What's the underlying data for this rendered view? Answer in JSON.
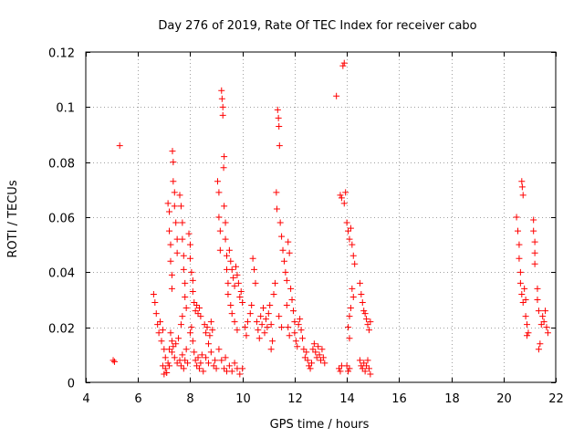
{
  "chart_data": {
    "type": "scatter",
    "title": "Day 276 of 2019, Rate Of TEC Index for receiver cabo",
    "xlabel": "GPS time / hours",
    "ylabel": "ROTI / TECUs",
    "xlim": [
      4,
      22
    ],
    "ylim": [
      0,
      0.12
    ],
    "xticks": [
      4,
      6,
      8,
      10,
      12,
      14,
      16,
      18,
      20,
      22
    ],
    "xtick_labels": [
      "4",
      "6",
      "8",
      "10",
      "12",
      "14",
      "16",
      "18",
      "20",
      "22"
    ],
    "yticks": [
      0,
      0.02,
      0.04,
      0.06,
      0.08,
      0.1,
      0.12
    ],
    "ytick_labels": [
      "0",
      "0.02",
      "0.04",
      "0.06",
      "0.08",
      "0.1",
      "0.12"
    ],
    "grid": true,
    "marker": "plus",
    "marker_color": "#ff0000",
    "series": [
      {
        "name": "ROTI",
        "points": [
          [
            5.05,
            0.008
          ],
          [
            5.1,
            0.0075
          ],
          [
            5.3,
            0.086
          ],
          [
            6.6,
            0.032
          ],
          [
            6.65,
            0.029
          ],
          [
            6.7,
            0.025
          ],
          [
            6.75,
            0.021
          ],
          [
            6.8,
            0.018
          ],
          [
            6.85,
            0.022
          ],
          [
            6.9,
            0.015
          ],
          [
            6.95,
            0.019
          ],
          [
            7.0,
            0.012
          ],
          [
            7.05,
            0.009
          ],
          [
            6.95,
            0.006
          ],
          [
            7.0,
            0.003
          ],
          [
            7.05,
            0.005
          ],
          [
            7.1,
            0.0035
          ],
          [
            7.15,
            0.065
          ],
          [
            7.2,
            0.062
          ],
          [
            7.2,
            0.055
          ],
          [
            7.25,
            0.05
          ],
          [
            7.25,
            0.044
          ],
          [
            7.3,
            0.039
          ],
          [
            7.3,
            0.034
          ],
          [
            7.32,
            0.084
          ],
          [
            7.35,
            0.08
          ],
          [
            7.35,
            0.073
          ],
          [
            7.4,
            0.069
          ],
          [
            7.4,
            0.064
          ],
          [
            7.45,
            0.058
          ],
          [
            7.5,
            0.052
          ],
          [
            7.5,
            0.047
          ],
          [
            7.2,
            0.012
          ],
          [
            7.3,
            0.011
          ],
          [
            7.35,
            0.013
          ],
          [
            7.4,
            0.009
          ],
          [
            7.45,
            0.014
          ],
          [
            7.5,
            0.007
          ],
          [
            7.55,
            0.016
          ],
          [
            7.25,
            0.018
          ],
          [
            7.3,
            0.015
          ],
          [
            7.15,
            0.007
          ],
          [
            7.2,
            0.006
          ],
          [
            7.6,
            0.068
          ],
          [
            7.65,
            0.064
          ],
          [
            7.7,
            0.058
          ],
          [
            7.7,
            0.052
          ],
          [
            7.75,
            0.046
          ],
          [
            7.75,
            0.041
          ],
          [
            7.8,
            0.036
          ],
          [
            7.8,
            0.031
          ],
          [
            7.85,
            0.027
          ],
          [
            7.65,
            0.021
          ],
          [
            7.7,
            0.024
          ],
          [
            7.6,
            0.008
          ],
          [
            7.65,
            0.006
          ],
          [
            7.7,
            0.01
          ],
          [
            7.75,
            0.005
          ],
          [
            7.8,
            0.008
          ],
          [
            7.85,
            0.012
          ],
          [
            7.9,
            0.007
          ],
          [
            7.95,
            0.054
          ],
          [
            8.0,
            0.05
          ],
          [
            8.0,
            0.045
          ],
          [
            8.05,
            0.04
          ],
          [
            8.1,
            0.037
          ],
          [
            8.1,
            0.033
          ],
          [
            8.15,
            0.029
          ],
          [
            8.2,
            0.026
          ],
          [
            8.25,
            0.028
          ],
          [
            8.3,
            0.025
          ],
          [
            8.35,
            0.027
          ],
          [
            8.4,
            0.024
          ],
          [
            8.0,
            0.018
          ],
          [
            8.05,
            0.02
          ],
          [
            8.1,
            0.015
          ],
          [
            8.15,
            0.011
          ],
          [
            8.2,
            0.008
          ],
          [
            8.25,
            0.006
          ],
          [
            8.3,
            0.009
          ],
          [
            8.35,
            0.005
          ],
          [
            8.4,
            0.007
          ],
          [
            8.45,
            0.01
          ],
          [
            8.5,
            0.004
          ],
          [
            8.55,
            0.021
          ],
          [
            8.6,
            0.018
          ],
          [
            8.65,
            0.02
          ],
          [
            8.7,
            0.014
          ],
          [
            8.75,
            0.017
          ],
          [
            8.8,
            0.022
          ],
          [
            8.85,
            0.019
          ],
          [
            8.6,
            0.009
          ],
          [
            8.7,
            0.007
          ],
          [
            8.8,
            0.011
          ],
          [
            8.9,
            0.006
          ],
          [
            8.95,
            0.008
          ],
          [
            9.0,
            0.005
          ],
          [
            9.05,
            0.073
          ],
          [
            9.1,
            0.069
          ],
          [
            9.1,
            0.06
          ],
          [
            9.15,
            0.055
          ],
          [
            9.15,
            0.048
          ],
          [
            9.2,
            0.106
          ],
          [
            9.22,
            0.103
          ],
          [
            9.25,
            0.1
          ],
          [
            9.25,
            0.097
          ],
          [
            9.28,
            0.078
          ],
          [
            9.3,
            0.082
          ],
          [
            9.3,
            0.064
          ],
          [
            9.35,
            0.058
          ],
          [
            9.35,
            0.052
          ],
          [
            9.4,
            0.046
          ],
          [
            9.4,
            0.041
          ],
          [
            9.45,
            0.036
          ],
          [
            9.45,
            0.032
          ],
          [
            9.1,
            0.012
          ],
          [
            9.2,
            0.008
          ],
          [
            9.3,
            0.005
          ],
          [
            9.4,
            0.004
          ],
          [
            9.35,
            0.009
          ],
          [
            9.5,
            0.048
          ],
          [
            9.55,
            0.044
          ],
          [
            9.6,
            0.041
          ],
          [
            9.65,
            0.038
          ],
          [
            9.7,
            0.035
          ],
          [
            9.75,
            0.042
          ],
          [
            9.8,
            0.039
          ],
          [
            9.85,
            0.036
          ],
          [
            9.9,
            0.031
          ],
          [
            9.95,
            0.033
          ],
          [
            10.0,
            0.029
          ],
          [
            9.55,
            0.028
          ],
          [
            9.6,
            0.025
          ],
          [
            9.7,
            0.022
          ],
          [
            9.8,
            0.019
          ],
          [
            9.5,
            0.006
          ],
          [
            9.6,
            0.004
          ],
          [
            9.7,
            0.007
          ],
          [
            9.8,
            0.005
          ],
          [
            9.9,
            0.003
          ],
          [
            10.0,
            0.005
          ],
          [
            10.1,
            0.02
          ],
          [
            10.15,
            0.017
          ],
          [
            10.2,
            0.022
          ],
          [
            10.3,
            0.025
          ],
          [
            10.35,
            0.028
          ],
          [
            10.4,
            0.045
          ],
          [
            10.45,
            0.041
          ],
          [
            10.5,
            0.036
          ],
          [
            10.55,
            0.022
          ],
          [
            10.6,
            0.019
          ],
          [
            10.65,
            0.016
          ],
          [
            10.7,
            0.024
          ],
          [
            10.75,
            0.021
          ],
          [
            10.8,
            0.027
          ],
          [
            10.85,
            0.018
          ],
          [
            10.9,
            0.023
          ],
          [
            10.95,
            0.02
          ],
          [
            11.0,
            0.025
          ],
          [
            11.05,
            0.028
          ],
          [
            11.1,
            0.021
          ],
          [
            11.15,
            0.015
          ],
          [
            11.1,
            0.012
          ],
          [
            11.2,
            0.032
          ],
          [
            11.25,
            0.036
          ],
          [
            11.3,
            0.069
          ],
          [
            11.32,
            0.063
          ],
          [
            11.35,
            0.099
          ],
          [
            11.38,
            0.096
          ],
          [
            11.4,
            0.093
          ],
          [
            11.42,
            0.086
          ],
          [
            11.45,
            0.058
          ],
          [
            11.5,
            0.053
          ],
          [
            11.55,
            0.048
          ],
          [
            11.6,
            0.044
          ],
          [
            11.65,
            0.04
          ],
          [
            11.7,
            0.037
          ],
          [
            11.75,
            0.051
          ],
          [
            11.8,
            0.047
          ],
          [
            11.85,
            0.034
          ],
          [
            11.9,
            0.03
          ],
          [
            11.95,
            0.026
          ],
          [
            12.0,
            0.022
          ],
          [
            11.7,
            0.028
          ],
          [
            11.75,
            0.02
          ],
          [
            11.8,
            0.017
          ],
          [
            11.4,
            0.024
          ],
          [
            11.5,
            0.02
          ],
          [
            12.0,
            0.018
          ],
          [
            12.05,
            0.015
          ],
          [
            12.1,
            0.013
          ],
          [
            12.15,
            0.021
          ],
          [
            12.2,
            0.023
          ],
          [
            12.25,
            0.019
          ],
          [
            12.3,
            0.016
          ],
          [
            12.35,
            0.012
          ],
          [
            12.4,
            0.009
          ],
          [
            12.45,
            0.011
          ],
          [
            12.5,
            0.008
          ],
          [
            12.55,
            0.006
          ],
          [
            12.6,
            0.005
          ],
          [
            12.65,
            0.007
          ],
          [
            12.7,
            0.012
          ],
          [
            12.75,
            0.014
          ],
          [
            12.8,
            0.011
          ],
          [
            12.85,
            0.009
          ],
          [
            12.9,
            0.013
          ],
          [
            12.95,
            0.01
          ],
          [
            13.0,
            0.008
          ],
          [
            13.05,
            0.012
          ],
          [
            13.1,
            0.009
          ],
          [
            13.15,
            0.007
          ],
          [
            13.6,
            0.104
          ],
          [
            13.85,
            0.115
          ],
          [
            13.9,
            0.116
          ],
          [
            13.75,
            0.068
          ],
          [
            13.8,
            0.067
          ],
          [
            13.9,
            0.065
          ],
          [
            13.95,
            0.069
          ],
          [
            13.7,
            0.005
          ],
          [
            13.75,
            0.004
          ],
          [
            13.8,
            0.006
          ],
          [
            14.0,
            0.058
          ],
          [
            14.05,
            0.055
          ],
          [
            14.1,
            0.052
          ],
          [
            14.15,
            0.056
          ],
          [
            14.2,
            0.05
          ],
          [
            14.25,
            0.046
          ],
          [
            14.3,
            0.043
          ],
          [
            14.2,
            0.034
          ],
          [
            14.25,
            0.031
          ],
          [
            14.15,
            0.027
          ],
          [
            14.1,
            0.024
          ],
          [
            14.05,
            0.02
          ],
          [
            14.1,
            0.016
          ],
          [
            14.0,
            0.006
          ],
          [
            14.05,
            0.004
          ],
          [
            14.1,
            0.005
          ],
          [
            14.5,
            0.036
          ],
          [
            14.55,
            0.032
          ],
          [
            14.6,
            0.029
          ],
          [
            14.65,
            0.026
          ],
          [
            14.7,
            0.025
          ],
          [
            14.75,
            0.023
          ],
          [
            14.8,
            0.021
          ],
          [
            14.85,
            0.019
          ],
          [
            14.9,
            0.022
          ],
          [
            14.5,
            0.008
          ],
          [
            14.55,
            0.006
          ],
          [
            14.6,
            0.005
          ],
          [
            14.65,
            0.007
          ],
          [
            14.7,
            0.004
          ],
          [
            14.75,
            0.006
          ],
          [
            14.8,
            0.008
          ],
          [
            14.85,
            0.005
          ],
          [
            14.9,
            0.003
          ],
          [
            20.5,
            0.06
          ],
          [
            20.55,
            0.055
          ],
          [
            20.6,
            0.05
          ],
          [
            20.6,
            0.045
          ],
          [
            20.65,
            0.04
          ],
          [
            20.65,
            0.036
          ],
          [
            20.7,
            0.073
          ],
          [
            20.72,
            0.071
          ],
          [
            20.75,
            0.068
          ],
          [
            20.7,
            0.032
          ],
          [
            20.75,
            0.029
          ],
          [
            20.8,
            0.034
          ],
          [
            20.85,
            0.03
          ],
          [
            20.85,
            0.024
          ],
          [
            20.9,
            0.021
          ],
          [
            20.95,
            0.018
          ],
          [
            20.9,
            0.017
          ],
          [
            21.15,
            0.059
          ],
          [
            21.15,
            0.055
          ],
          [
            21.2,
            0.051
          ],
          [
            21.2,
            0.047
          ],
          [
            21.2,
            0.043
          ],
          [
            21.3,
            0.034
          ],
          [
            21.3,
            0.03
          ],
          [
            21.35,
            0.026
          ],
          [
            21.35,
            0.012
          ],
          [
            21.4,
            0.014
          ],
          [
            21.45,
            0.021
          ],
          [
            21.5,
            0.024
          ],
          [
            21.55,
            0.022
          ],
          [
            21.6,
            0.026
          ],
          [
            21.65,
            0.02
          ],
          [
            21.7,
            0.018
          ]
        ]
      }
    ]
  }
}
